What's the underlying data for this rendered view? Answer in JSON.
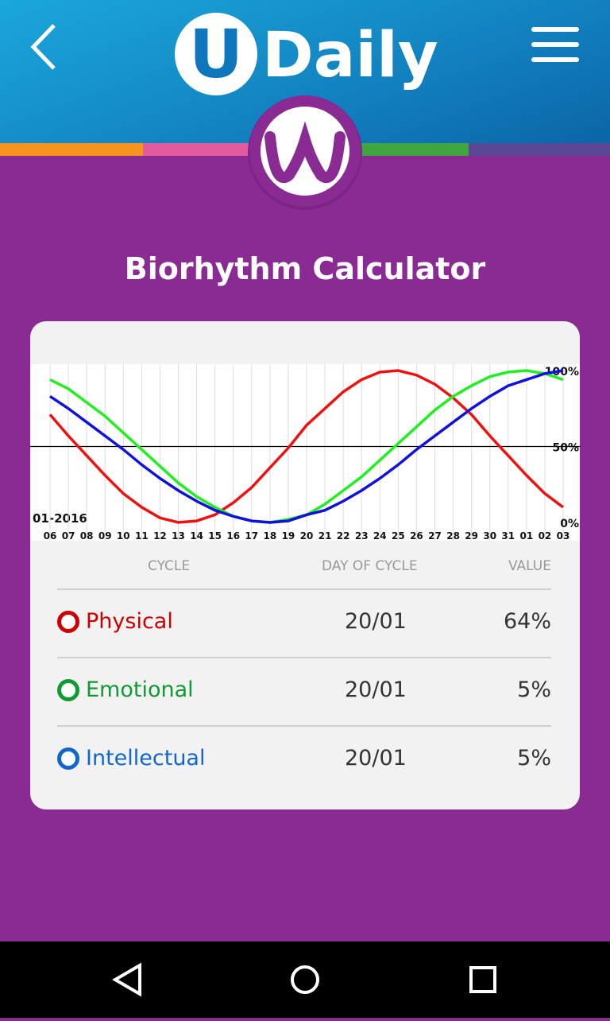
{
  "header": {
    "logo_letter": "U",
    "logo_text": "Daily"
  },
  "title": "Biorhythm Calculator",
  "chart_data": {
    "type": "line",
    "annotation": "01-2016",
    "categories": [
      "06",
      "07",
      "08",
      "09",
      "10",
      "11",
      "12",
      "13",
      "14",
      "15",
      "16",
      "17",
      "18",
      "19",
      "20",
      "21",
      "22",
      "23",
      "24",
      "25",
      "26",
      "27",
      "28",
      "29",
      "30",
      "31",
      "01",
      "02",
      "03"
    ],
    "series": [
      {
        "color": "#ee1111",
        "values": [
          71,
          57,
          44,
          31,
          19,
          10,
          3,
          0,
          1,
          5,
          13,
          23,
          36,
          49,
          64,
          75,
          86,
          94,
          99,
          100,
          97,
          91,
          82,
          71,
          57,
          44,
          31,
          19,
          10
        ]
      },
      {
        "color": "#22ee22",
        "values": [
          94,
          88,
          79,
          70,
          59,
          48,
          37,
          26,
          17,
          10,
          4,
          1,
          0,
          2,
          5,
          12,
          21,
          30,
          41,
          52,
          63,
          74,
          83,
          90,
          96,
          99,
          100,
          98,
          94
        ]
      },
      {
        "color": "#1111dd",
        "values": [
          83,
          75,
          66,
          57,
          48,
          38,
          29,
          21,
          14,
          8,
          4,
          1,
          0,
          1,
          5,
          8,
          14,
          21,
          29,
          38,
          48,
          57,
          66,
          75,
          83,
          90,
          94,
          98,
          100
        ]
      }
    ],
    "ylim": [
      0,
      100
    ],
    "yticks": [
      {
        "value": 0,
        "label": "0%"
      },
      {
        "value": 50,
        "label": "50%"
      },
      {
        "value": 100,
        "label": "100%"
      }
    ],
    "grid": true
  },
  "table": {
    "columns": [
      "CYCLE",
      "DAY OF CYCLE",
      "VALUE"
    ],
    "rows": [
      {
        "name": "Physical",
        "day": "20/01",
        "value": "64%",
        "color": "#cc0000"
      },
      {
        "name": "Emotional",
        "day": "20/01",
        "value": "5%",
        "color": "#119933"
      },
      {
        "name": "Intellectual",
        "day": "20/01",
        "value": "5%",
        "color": "#1166cc"
      }
    ]
  }
}
